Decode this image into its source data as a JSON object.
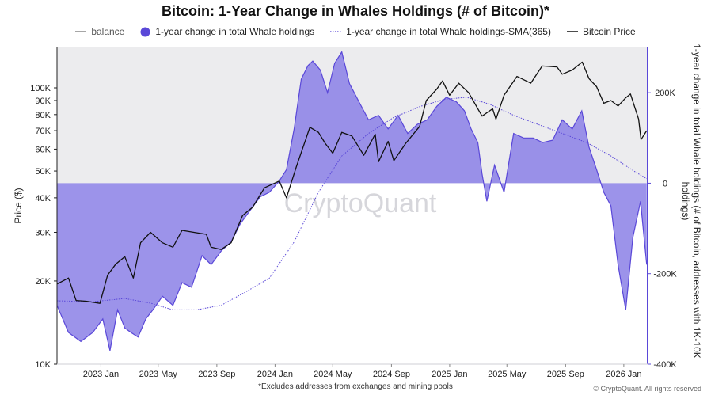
{
  "chart_data": {
    "type": "line+area",
    "title": "Bitcoin: 1-Year Change in Whales Holdings (# of Bitcoin)*",
    "footnote": "*Excludes addresses from exchanges and mining pools",
    "credit": "© CryptoQuant. All rights reserved",
    "watermark": "CryptoQuant",
    "left_axis": {
      "label": "Price ($)",
      "scale": "log",
      "range": [
        10000,
        140000
      ],
      "ticks": [
        10000,
        20000,
        30000,
        40000,
        50000,
        60000,
        70000,
        80000,
        90000,
        100000
      ],
      "tick_labels": [
        "10K",
        "20K",
        "30K",
        "40K",
        "50K",
        "60K",
        "70K",
        "80K",
        "90K",
        "100K"
      ]
    },
    "right_axis": {
      "label": "1-year change in total Whale holdings (# of Bitcoin, addresses with 1K-10K holdings)",
      "range": [
        -400000,
        300000
      ],
      "ticks": [
        200000,
        0,
        -200000,
        -400000
      ],
      "tick_labels": [
        "200K",
        "0",
        "-200K",
        "-400K"
      ]
    },
    "x_axis": {
      "range": [
        "2022-10-01",
        "2026-02-20"
      ],
      "tick_labels": [
        "2023 Jan",
        "2023 May",
        "2023 Sep",
        "2024 Jan",
        "2024 May",
        "2024 Sep",
        "2025 Jan",
        "2025 May",
        "2025 Sep",
        "2026 Jan"
      ],
      "tick_dates": [
        "2023-01-01",
        "2023-05-01",
        "2023-09-01",
        "2024-01-01",
        "2024-05-01",
        "2024-09-01",
        "2025-01-01",
        "2025-05-01",
        "2025-09-01",
        "2026-01-01"
      ]
    },
    "legend": [
      {
        "name": "balance",
        "style": "strikethrough-line"
      },
      {
        "name": "1-year change in total Whale holdings",
        "style": "filled-circle"
      },
      {
        "name": "1-year change in total Whale holdings-SMA(365)",
        "style": "dotted-line"
      },
      {
        "name": "Bitcoin Price",
        "style": "solid-line"
      }
    ],
    "colors": {
      "whale": "#5a48d8",
      "whale_fill": "#8b80e6",
      "sma": "#5a48d8",
      "price": "#111111",
      "panel": "#ececee"
    },
    "series": [
      {
        "name": "1-year change in total Whale holdings",
        "axis": "right",
        "x": [
          "2022-10-01",
          "2022-10-25",
          "2022-11-20",
          "2022-12-15",
          "2023-01-05",
          "2023-01-20",
          "2023-02-05",
          "2023-02-20",
          "2023-03-05",
          "2023-03-20",
          "2023-04-05",
          "2023-04-20",
          "2023-05-10",
          "2023-06-01",
          "2023-06-20",
          "2023-07-10",
          "2023-08-01",
          "2023-08-20",
          "2023-09-10",
          "2023-10-01",
          "2023-10-20",
          "2023-11-10",
          "2023-12-01",
          "2023-12-20",
          "2024-01-10",
          "2024-01-25",
          "2024-02-10",
          "2024-02-25",
          "2024-03-10",
          "2024-03-20",
          "2024-04-05",
          "2024-04-20",
          "2024-05-05",
          "2024-05-20",
          "2024-06-05",
          "2024-06-25",
          "2024-07-15",
          "2024-08-05",
          "2024-08-25",
          "2024-09-15",
          "2024-10-05",
          "2024-10-25",
          "2024-11-15",
          "2024-12-05",
          "2024-12-25",
          "2025-01-15",
          "2025-02-01",
          "2025-02-15",
          "2025-03-01",
          "2025-03-10",
          "2025-03-20",
          "2025-04-05",
          "2025-04-25",
          "2025-05-15",
          "2025-06-05",
          "2025-06-25",
          "2025-07-15",
          "2025-08-05",
          "2025-08-25",
          "2025-09-15",
          "2025-10-05",
          "2025-10-20",
          "2025-11-05",
          "2025-11-20",
          "2025-12-05",
          "2025-12-20",
          "2026-01-05",
          "2026-01-20",
          "2026-02-05",
          "2026-02-18"
        ],
        "y": [
          -270000,
          -330000,
          -350000,
          -330000,
          -300000,
          -370000,
          -280000,
          -320000,
          -330000,
          -340000,
          -300000,
          -280000,
          -250000,
          -270000,
          -220000,
          -230000,
          -160000,
          -180000,
          -150000,
          -130000,
          -90000,
          -60000,
          -30000,
          -20000,
          5000,
          30000,
          120000,
          230000,
          260000,
          270000,
          250000,
          200000,
          265000,
          290000,
          220000,
          180000,
          140000,
          150000,
          120000,
          150000,
          110000,
          130000,
          140000,
          170000,
          190000,
          180000,
          160000,
          120000,
          90000,
          20000,
          -40000,
          40000,
          -20000,
          110000,
          100000,
          100000,
          90000,
          95000,
          140000,
          120000,
          160000,
          80000,
          30000,
          -20000,
          -50000,
          -180000,
          -280000,
          -120000,
          -40000,
          -180000
        ]
      },
      {
        "name": "1-year change in total Whale holdings-SMA(365)",
        "axis": "right",
        "x": [
          "2022-10-01",
          "2022-12-15",
          "2023-02-20",
          "2023-04-15",
          "2023-06-01",
          "2023-07-20",
          "2023-09-10",
          "2023-11-01",
          "2023-12-20",
          "2024-02-10",
          "2024-04-01",
          "2024-05-20",
          "2024-07-15",
          "2024-09-05",
          "2024-11-01",
          "2024-12-20",
          "2025-02-05",
          "2025-03-25",
          "2025-05-15",
          "2025-07-05",
          "2025-08-25",
          "2025-10-15",
          "2025-12-05",
          "2026-01-25",
          "2026-02-18"
        ],
        "y": [
          -260000,
          -262000,
          -255000,
          -265000,
          -280000,
          -280000,
          -270000,
          -240000,
          -210000,
          -130000,
          -20000,
          60000,
          110000,
          145000,
          170000,
          185000,
          190000,
          175000,
          150000,
          130000,
          110000,
          90000,
          60000,
          25000,
          10000
        ]
      },
      {
        "name": "Bitcoin Price",
        "axis": "left",
        "x": [
          "2022-10-01",
          "2022-10-25",
          "2022-11-10",
          "2022-12-01",
          "2022-12-30",
          "2023-01-15",
          "2023-02-01",
          "2023-02-20",
          "2023-03-10",
          "2023-03-25",
          "2023-04-15",
          "2023-05-10",
          "2023-06-01",
          "2023-06-20",
          "2023-07-15",
          "2023-08-10",
          "2023-08-20",
          "2023-09-10",
          "2023-10-01",
          "2023-10-25",
          "2023-11-15",
          "2023-12-10",
          "2024-01-10",
          "2024-01-25",
          "2024-02-15",
          "2024-03-14",
          "2024-04-01",
          "2024-04-15",
          "2024-05-01",
          "2024-05-20",
          "2024-06-10",
          "2024-07-05",
          "2024-07-29",
          "2024-08-05",
          "2024-08-25",
          "2024-09-06",
          "2024-10-01",
          "2024-10-30",
          "2024-11-13",
          "2024-12-05",
          "2024-12-17",
          "2025-01-01",
          "2025-01-20",
          "2025-02-10",
          "2025-03-01",
          "2025-03-10",
          "2025-04-01",
          "2025-04-08",
          "2025-04-25",
          "2025-05-22",
          "2025-06-20",
          "2025-07-14",
          "2025-08-14",
          "2025-08-25",
          "2025-09-15",
          "2025-10-06",
          "2025-10-20",
          "2025-11-05",
          "2025-11-20",
          "2025-12-05",
          "2025-12-20",
          "2026-01-05",
          "2026-01-15",
          "2026-02-01",
          "2026-02-06",
          "2026-02-18"
        ],
        "y": [
          19500,
          20500,
          17000,
          16900,
          16600,
          21000,
          23000,
          24500,
          20500,
          27500,
          30000,
          27500,
          26500,
          30500,
          30000,
          29500,
          26500,
          26000,
          27500,
          34500,
          37000,
          43500,
          46000,
          40000,
          52000,
          72000,
          69000,
          63000,
          58000,
          69000,
          67000,
          57000,
          68000,
          54000,
          64000,
          54500,
          63000,
          72500,
          90000,
          99000,
          106000,
          94000,
          104000,
          96000,
          84000,
          79000,
          84000,
          77000,
          94000,
          110000,
          104000,
          120000,
          119000,
          112000,
          116000,
          124000,
          108000,
          101000,
          88000,
          90000,
          86000,
          92000,
          95000,
          77000,
          65000,
          70000
        ]
      }
    ]
  }
}
